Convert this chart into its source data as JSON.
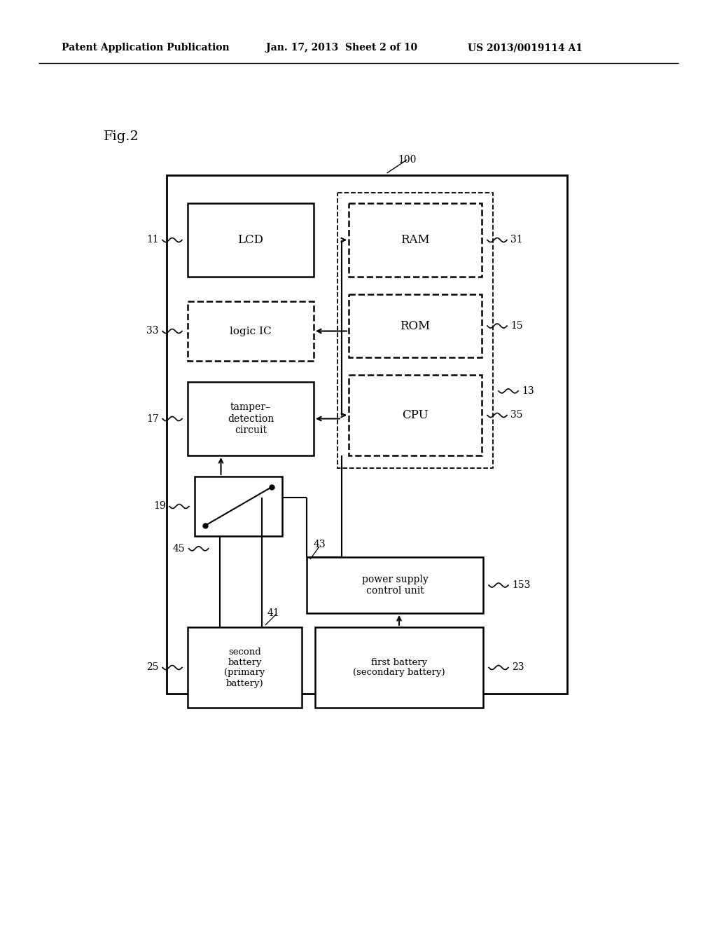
{
  "bg_color": "#ffffff",
  "header_left": "Patent Application Publication",
  "header_mid": "Jan. 17, 2013  Sheet 2 of 10",
  "header_right": "US 2013/0019114 A1",
  "fig_label": "Fig.2",
  "outer_box_label": "100"
}
